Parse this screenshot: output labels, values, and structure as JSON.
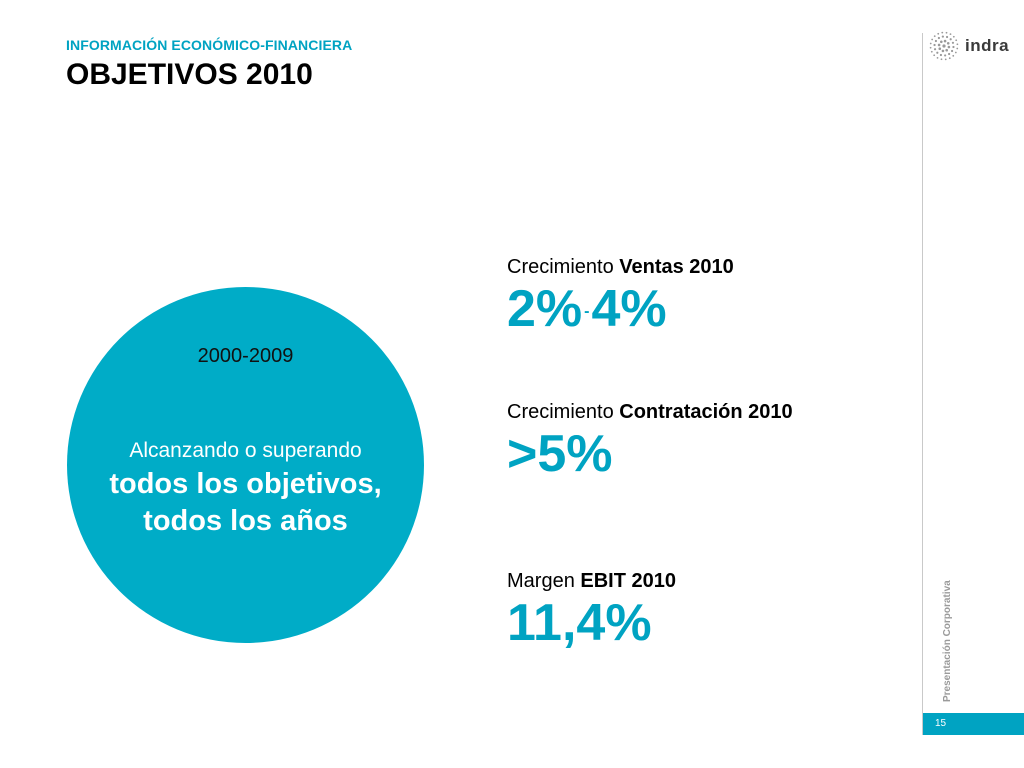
{
  "header": {
    "section": "INFORMACIÓN ECONÓMICO-FINANCIERA",
    "title": "OBJETIVOS 2010"
  },
  "brand": {
    "logo_text": "indra",
    "logo_icon": "indra-logo-icon",
    "accent_color": "#00a3c2"
  },
  "sidebar": {
    "vertical_label": "Presentación Corporativa",
    "page_number": "15"
  },
  "circle": {
    "years": "2000-2009",
    "line1": "Alcanzando o superando",
    "line2": "todos los objetivos,",
    "line3": "todos los años",
    "color": "#00acc7"
  },
  "metrics": [
    {
      "label_regular": "Crecimiento",
      "label_bold": "Ventas 2010",
      "value_low": "2%",
      "separator": "-",
      "value_high": "4%"
    },
    {
      "label_regular": "Crecimiento",
      "label_bold": "Contratación 2010",
      "value": ">5%"
    },
    {
      "label_regular": "Margen",
      "label_bold": "EBIT 2010",
      "value": "11,4%"
    }
  ]
}
